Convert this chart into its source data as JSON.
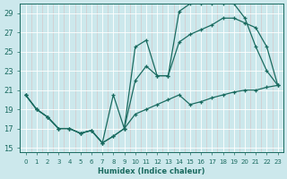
{
  "xlabel": "Humidex (Indice chaleur)",
  "background_color": "#cce8ec",
  "grid_color": "#b0d4d8",
  "line_color": "#1a6b60",
  "xlim": [
    -0.5,
    23.5
  ],
  "ylim": [
    14.5,
    30.0
  ],
  "xticks": [
    0,
    1,
    2,
    3,
    4,
    5,
    6,
    7,
    8,
    9,
    10,
    11,
    12,
    13,
    14,
    15,
    16,
    17,
    18,
    19,
    20,
    21,
    22,
    23
  ],
  "yticks": [
    15,
    17,
    19,
    21,
    23,
    25,
    27,
    29
  ],
  "line1_x": [
    0,
    1,
    2,
    3,
    4,
    5,
    6,
    7,
    8,
    9,
    10,
    11,
    12,
    13,
    14,
    15,
    16,
    17,
    18,
    19,
    20,
    21,
    22,
    23
  ],
  "line1_y": [
    20.5,
    19.0,
    18.2,
    17.0,
    17.0,
    16.5,
    16.8,
    15.5,
    20.5,
    17.0,
    22.0,
    23.5,
    22.5,
    22.5,
    29.2,
    30.0,
    30.0,
    30.0,
    30.0,
    30.0,
    28.5,
    25.5,
    23.0,
    21.5
  ],
  "line2_x": [
    0,
    1,
    2,
    3,
    4,
    5,
    6,
    7,
    8,
    9,
    10,
    11,
    12,
    13,
    14,
    15,
    16,
    17,
    18,
    19,
    20,
    21,
    22,
    23
  ],
  "line2_y": [
    20.5,
    19.0,
    18.2,
    17.0,
    17.0,
    16.5,
    16.8,
    15.5,
    16.2,
    17.0,
    25.5,
    26.2,
    22.5,
    22.5,
    26.0,
    26.8,
    27.3,
    27.8,
    28.5,
    28.5,
    28.0,
    27.5,
    25.5,
    21.5
  ],
  "line3_x": [
    0,
    1,
    2,
    3,
    4,
    5,
    6,
    7,
    8,
    9,
    10,
    11,
    12,
    13,
    14,
    15,
    16,
    17,
    18,
    19,
    20,
    21,
    22,
    23
  ],
  "line3_y": [
    20.5,
    19.0,
    18.2,
    17.0,
    17.0,
    16.5,
    16.8,
    15.5,
    16.2,
    17.0,
    18.5,
    19.0,
    19.5,
    20.0,
    20.5,
    19.5,
    19.8,
    20.2,
    20.5,
    20.8,
    21.0,
    21.0,
    21.3,
    21.5
  ]
}
